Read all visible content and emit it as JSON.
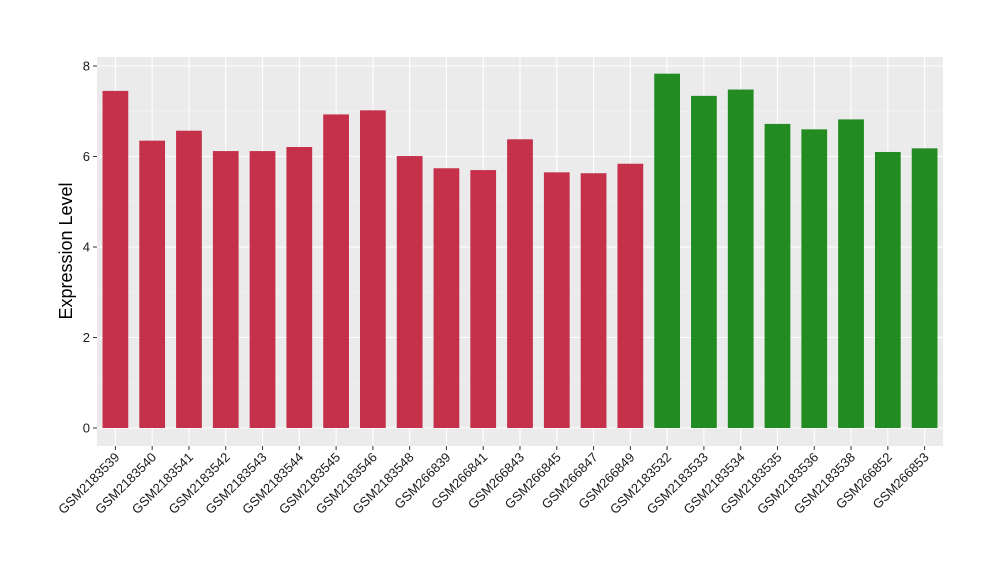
{
  "chart_data": {
    "type": "bar",
    "title": "",
    "xlabel": "",
    "ylabel": "Expression Level",
    "ylim": [
      0,
      8.3
    ],
    "yticks": [
      0,
      2,
      4,
      6,
      8
    ],
    "grid": true,
    "background": "#ebebeb",
    "categories": [
      "GSM2183539",
      "GSM2183540",
      "GSM2183541",
      "GSM2183542",
      "GSM2183543",
      "GSM2183544",
      "GSM2183545",
      "GSM2183546",
      "GSM2183548",
      "GSM266839",
      "GSM266841",
      "GSM266843",
      "GSM266845",
      "GSM266847",
      "GSM266849",
      "GSM2183532",
      "GSM2183533",
      "GSM2183534",
      "GSM2183535",
      "GSM2183536",
      "GSM2183538",
      "GSM266852",
      "GSM266853"
    ],
    "values": [
      7.45,
      6.35,
      6.57,
      6.12,
      6.12,
      6.21,
      6.93,
      7.02,
      6.01,
      5.74,
      5.7,
      6.38,
      5.65,
      5.63,
      5.84,
      7.83,
      7.34,
      7.48,
      6.72,
      6.6,
      6.82,
      6.1,
      6.18
    ],
    "groups": [
      "a",
      "a",
      "a",
      "a",
      "a",
      "a",
      "a",
      "a",
      "a",
      "a",
      "a",
      "a",
      "a",
      "a",
      "a",
      "b",
      "b",
      "b",
      "b",
      "b",
      "b",
      "b",
      "b"
    ],
    "colors": {
      "a": "#c5304a",
      "b": "#228b22"
    }
  }
}
